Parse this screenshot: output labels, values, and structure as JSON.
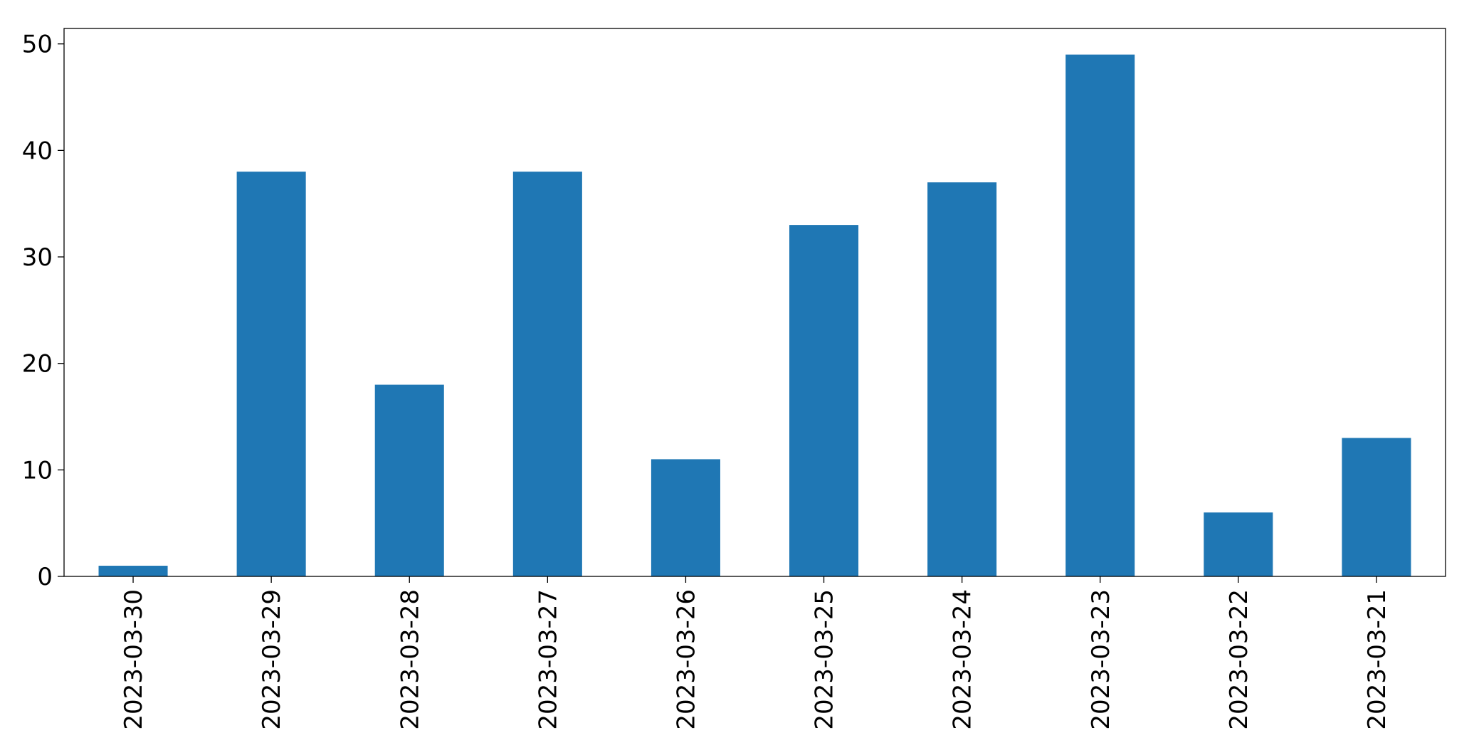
{
  "chart_data": {
    "type": "bar",
    "categories": [
      "2023-03-30",
      "2023-03-29",
      "2023-03-28",
      "2023-03-27",
      "2023-03-26",
      "2023-03-25",
      "2023-03-24",
      "2023-03-23",
      "2023-03-22",
      "2023-03-21"
    ],
    "values": [
      1,
      38,
      18,
      38,
      11,
      33,
      37,
      49,
      6,
      13
    ],
    "color": "#1f77b4",
    "ylim": [
      0,
      51.45
    ],
    "yticks": [
      0,
      10,
      20,
      30,
      40,
      50
    ],
    "grid": false
  }
}
